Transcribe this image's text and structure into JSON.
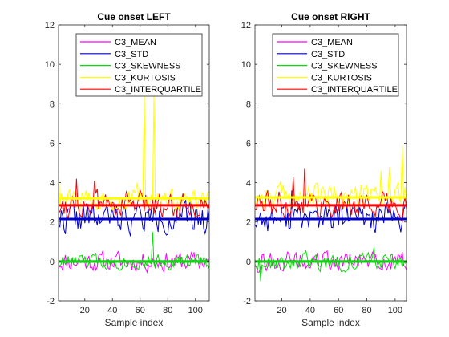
{
  "chart_data": [
    {
      "type": "line",
      "title": "Cue onset LEFT",
      "xlabel": "Sample index",
      "ylabel": "",
      "xlim": [
        1,
        110
      ],
      "ylim": [
        -2,
        12
      ],
      "xticks": [
        20,
        40,
        60,
        80,
        100
      ],
      "yticks": [
        -2,
        0,
        2,
        4,
        6,
        8,
        10,
        12
      ],
      "grid": false,
      "legend": "top-center",
      "series": [
        {
          "name": "C3_MEAN",
          "color": "#ff00ff",
          "seed": 11,
          "base": 0.0,
          "noise": 0.45,
          "mean_line": 0.0
        },
        {
          "name": "C3_STD",
          "color": "#0000cc",
          "seed": 22,
          "base": 2.2,
          "noise": 0.7,
          "mean_line": 2.15
        },
        {
          "name": "C3_SKEWNESS",
          "color": "#00dd00",
          "seed": 33,
          "base": 0.0,
          "noise": 0.35,
          "mean_line": 0.0,
          "spikes": [
            [
              69,
              1.5
            ]
          ]
        },
        {
          "name": "C3_KURTOSIS",
          "color": "#ffff00",
          "seed": 44,
          "base": 3.1,
          "noise": 0.5,
          "mean_line": 3.2,
          "spikes": [
            [
              63,
              8.6
            ],
            [
              70,
              8.4
            ],
            [
              1,
              4.7
            ],
            [
              58,
              4.0
            ]
          ]
        },
        {
          "name": "C3_INTERQUARTILE",
          "color": "#ff0000",
          "seed": 55,
          "base": 2.9,
          "noise": 0.6,
          "mean_line": 2.85,
          "spikes": [
            [
              14,
              4.2
            ],
            [
              27,
              4.1
            ]
          ]
        }
      ]
    },
    {
      "type": "line",
      "title": "Cue onset RIGHT",
      "xlabel": "Sample index",
      "ylabel": "",
      "xlim": [
        1,
        108
      ],
      "ylim": [
        -2,
        12
      ],
      "xticks": [
        20,
        40,
        60,
        80,
        100
      ],
      "yticks": [
        -2,
        0,
        2,
        4,
        6,
        8,
        10,
        12
      ],
      "grid": false,
      "legend": "top-center",
      "series": [
        {
          "name": "C3_MEAN",
          "color": "#ff00ff",
          "seed": 66,
          "base": 0.0,
          "noise": 0.45,
          "mean_line": 0.0
        },
        {
          "name": "C3_STD",
          "color": "#0000cc",
          "seed": 77,
          "base": 2.2,
          "noise": 0.7,
          "mean_line": 2.15,
          "spikes": [
            [
              27,
              3.6
            ]
          ]
        },
        {
          "name": "C3_SKEWNESS",
          "color": "#00dd00",
          "seed": 88,
          "base": 0.0,
          "noise": 0.4,
          "mean_line": 0.0,
          "spikes": [
            [
              5,
              -1.0
            ],
            [
              85,
              0.7
            ]
          ]
        },
        {
          "name": "C3_KURTOSIS",
          "color": "#ffff00",
          "seed": 99,
          "base": 3.3,
          "noise": 0.6,
          "mean_line": 3.25,
          "spikes": [
            [
              105,
              5.9
            ],
            [
              96,
              4.8
            ],
            [
              90,
              4.6
            ]
          ]
        },
        {
          "name": "C3_INTERQUARTILE",
          "color": "#ff0000",
          "seed": 111,
          "base": 2.9,
          "noise": 0.6,
          "mean_line": 2.85,
          "spikes": [
            [
              36,
              4.7
            ],
            [
              28,
              4.3
            ]
          ]
        }
      ]
    }
  ]
}
